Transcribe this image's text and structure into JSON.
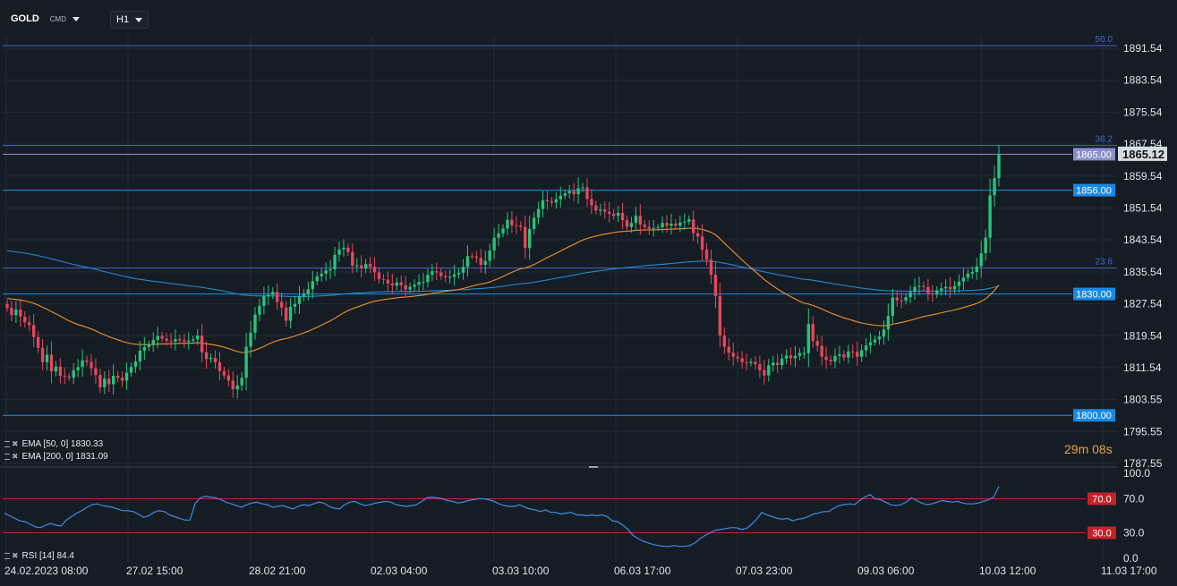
{
  "header": {
    "symbol": "GOLD",
    "symbol_type": "CMD",
    "timeframe": "H1"
  },
  "colors": {
    "bg": "#161c24",
    "grid": "#222a33",
    "up": "#26c47e",
    "down": "#e5475a",
    "ema50": "#f0932b",
    "ema200": "#1f8bd0",
    "hline": "#1e90e0",
    "fib": "#4a62c8",
    "rsi": "#3a8fe8",
    "rsi_level": "#c8202a",
    "axis_text": "#dfe5ec",
    "fib_text": "#4a62c8"
  },
  "price_axis": {
    "ticks": [
      "1891.54",
      "1883.54",
      "1875.54",
      "1867.54",
      "1859.54",
      "1851.54",
      "1843.54",
      "1835.54",
      "1827.54",
      "1819.54",
      "1811.54",
      "1803.55",
      "1795.55",
      "1787.55"
    ],
    "tick_values": [
      1891.54,
      1883.54,
      1875.54,
      1867.54,
      1859.54,
      1851.54,
      1843.54,
      1835.54,
      1827.54,
      1819.54,
      1811.54,
      1803.55,
      1795.55,
      1787.55
    ]
  },
  "time_axis": {
    "labels": [
      "24.02.2023  08:00",
      "27.02  15:00",
      "28.02  21:00",
      "02.03  04:00",
      "03.03  10:00",
      "06.03  17:00",
      "07.03  23:00",
      "09.03  06:00",
      "10.03  12:00",
      "11.03  17:00"
    ]
  },
  "fib_levels": [
    {
      "label": "50.0",
      "price": 1892.2
    },
    {
      "label": "38.2",
      "price": 1867.2
    },
    {
      "label": "23.6",
      "price": 1836.5
    }
  ],
  "horizontal_lines": [
    {
      "label": "1856.00",
      "price": 1856.0
    },
    {
      "label": "1830.00",
      "price": 1830.0
    },
    {
      "label": "1800.00",
      "price": 1799.6
    }
  ],
  "last_price_line": {
    "label": "1865.00",
    "price": 1865.0
  },
  "current_price": {
    "label": "1865.12",
    "price": 1865.12
  },
  "indicators": {
    "ema50_label": "EMA [50, 0] 1830.33",
    "ema200_label": "EMA [200, 0] 1831.09",
    "rsi_label": "RSI [14] 84.4"
  },
  "rsi_axis": {
    "ticks": [
      "100.0",
      "70.0",
      "30.0",
      "0.0"
    ],
    "levels": [
      {
        "label": "70.0",
        "value": 70
      },
      {
        "label": "30.0",
        "value": 30
      }
    ]
  },
  "countdown": {
    "value": "29m 08s"
  },
  "chart_data": {
    "type": "candlestick",
    "price_range": [
      1787.55,
      1891.54
    ],
    "closes": [
      1826.5,
      1824.7,
      1826.1,
      1824.3,
      1822.9,
      1822.2,
      1819.2,
      1816.5,
      1812.9,
      1814.8,
      1810.6,
      1811.8,
      1809.5,
      1809.3,
      1809.0,
      1810.9,
      1811.7,
      1813.4,
      1813.0,
      1811.4,
      1809.7,
      1806.6,
      1808.8,
      1807.4,
      1809.5,
      1809.0,
      1808.3,
      1810.3,
      1811.7,
      1813.1,
      1815.8,
      1816.7,
      1817.2,
      1818.5,
      1819.5,
      1818.8,
      1818.3,
      1818.1,
      1818.7,
      1818.4,
      1818.0,
      1818.3,
      1818.6,
      1819.6,
      1815.4,
      1813.7,
      1814.0,
      1812.9,
      1810.7,
      1809.6,
      1808.3,
      1806.1,
      1807.1,
      1809.0,
      1816.8,
      1820.3,
      1824.8,
      1827.0,
      1829.4,
      1829.8,
      1830.5,
      1828.0,
      1826.6,
      1823.3,
      1826.8,
      1827.5,
      1829.3,
      1830.0,
      1831.2,
      1833.2,
      1834.4,
      1835.1,
      1835.9,
      1836.2,
      1839.8,
      1841.2,
      1841.6,
      1840.5,
      1837.1,
      1837.2,
      1836.4,
      1837.5,
      1836.8,
      1835.4,
      1833.7,
      1833.6,
      1832.6,
      1832.1,
      1832.9,
      1832.2,
      1831.1,
      1831.8,
      1832.3,
      1833.0,
      1833.0,
      1834.8,
      1835.7,
      1835.4,
      1834.5,
      1834.2,
      1834.3,
      1834.9,
      1835.3,
      1836.8,
      1839.5,
      1839.4,
      1839.0,
      1837.3,
      1838.3,
      1840.9,
      1844.1,
      1845.2,
      1846.4,
      1848.6,
      1847.2,
      1847.1,
      1846.8,
      1841.5,
      1846.3,
      1849.1,
      1851.3,
      1853.5,
      1853.2,
      1852.9,
      1853.7,
      1854.6,
      1855.2,
      1855.8,
      1855.0,
      1856.5,
      1856.7,
      1853.8,
      1852.2,
      1850.9,
      1851.2,
      1850.6,
      1850.1,
      1849.6,
      1850.3,
      1848.5,
      1846.8,
      1847.8,
      1849.6,
      1847.4,
      1846.8,
      1846.3,
      1846.5,
      1846.7,
      1847.8,
      1847.1,
      1847.6,
      1847.1,
      1847.9,
      1848.1,
      1848.7,
      1845.2,
      1844.4,
      1841.1,
      1838.6,
      1834.8,
      1829.5,
      1819.6,
      1816.8,
      1815.3,
      1814.3,
      1813.9,
      1812.9,
      1812.7,
      1813.0,
      1812.4,
      1810.9,
      1809.6,
      1812.1,
      1812.8,
      1812.2,
      1813.8,
      1814.6,
      1813.9,
      1814.5,
      1815.2,
      1815.2,
      1822.5,
      1818.2,
      1817.0,
      1814.3,
      1813.5,
      1813.1,
      1814.5,
      1814.9,
      1814.1,
      1815.6,
      1815.5,
      1814.3,
      1815.9,
      1817.1,
      1817.9,
      1818.6,
      1819.3,
      1821.1,
      1824.5,
      1829.1,
      1828.4,
      1828.3,
      1829.2,
      1830.5,
      1831.8,
      1832.0,
      1831.8,
      1830.1,
      1829.9,
      1830.9,
      1831.4,
      1831.8,
      1831.2,
      1832.0,
      1833.1,
      1834.1,
      1835.1,
      1835.5,
      1836.9,
      1840.2,
      1844.1,
      1854.7,
      1859.0,
      1865.0
    ]
  },
  "rsi_data": {
    "range": [
      0,
      100
    ],
    "values": [
      53,
      50,
      47,
      44,
      43,
      40,
      37,
      36,
      39,
      41,
      39,
      38,
      45,
      49,
      53,
      56,
      60,
      63,
      64,
      62,
      61,
      60,
      58,
      56,
      56,
      55,
      52,
      48,
      50,
      54,
      56,
      55,
      51,
      49,
      47,
      45,
      45,
      64,
      71,
      73,
      72,
      71,
      69,
      66,
      64,
      62,
      60,
      63,
      65,
      66,
      64,
      63,
      60,
      61,
      62,
      60,
      58,
      61,
      63,
      62,
      64,
      66,
      65,
      61,
      59,
      58,
      63,
      66,
      67,
      64,
      62,
      63,
      65,
      66,
      67,
      66,
      63,
      62,
      61,
      62,
      63,
      67,
      71,
      72,
      71,
      70,
      68,
      67,
      65,
      66,
      68,
      69,
      70,
      70,
      69,
      67,
      64,
      62,
      61,
      61,
      63,
      60,
      58,
      57,
      55,
      57,
      54,
      54,
      52,
      53,
      54,
      51,
      51,
      50,
      51,
      50,
      51,
      49,
      44,
      43,
      39,
      34,
      27,
      23,
      20,
      18,
      16,
      15,
      14,
      14,
      15,
      14,
      14,
      15,
      18,
      23,
      27,
      30,
      33,
      34,
      35,
      36,
      36,
      34,
      35,
      40,
      46,
      54,
      51,
      49,
      47,
      46,
      47,
      44,
      46,
      47,
      49,
      52,
      53,
      55,
      55,
      59,
      62,
      63,
      64,
      63,
      68,
      72,
      75,
      70,
      69,
      66,
      63,
      62,
      63,
      66,
      71,
      68,
      65,
      63,
      64,
      66,
      68,
      67,
      66,
      67,
      65,
      64,
      64,
      65,
      67,
      69,
      72,
      84.4
    ]
  }
}
